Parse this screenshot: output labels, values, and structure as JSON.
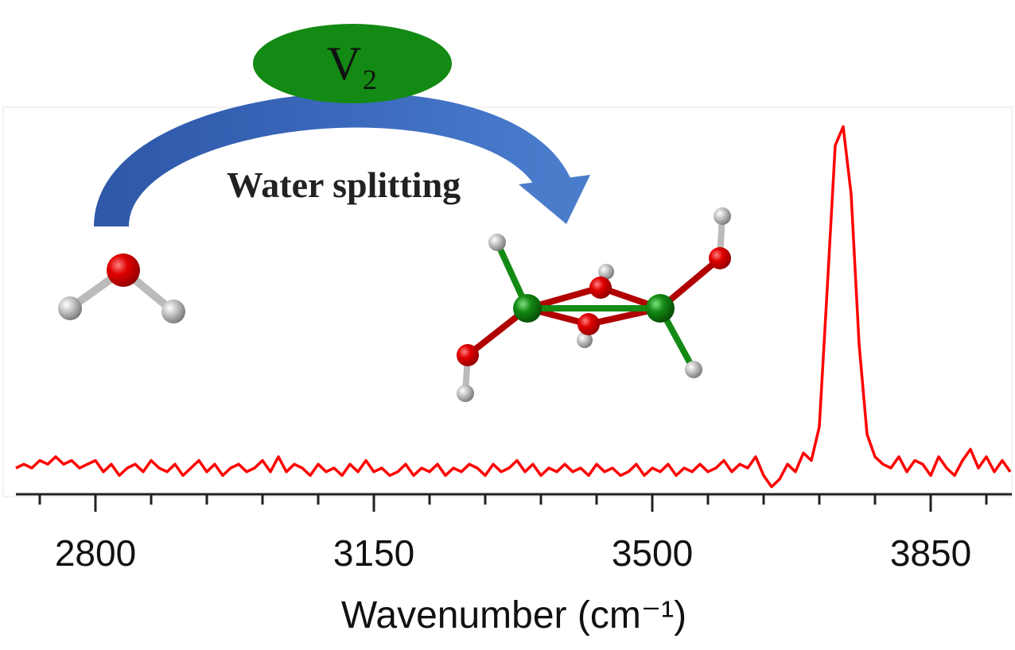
{
  "chart_data": {
    "type": "line",
    "catalyst_label": "V₂",
    "reaction_label": "Water splitting",
    "xlabel": "Wavenumber (cm⁻¹)",
    "color": "#ff0000",
    "xlim": [
      2700,
      3950
    ],
    "xticks": [
      2800,
      3150,
      3500,
      3850
    ],
    "xminorticks": [
      2730,
      2870,
      2940,
      3010,
      3080,
      3220,
      3290,
      3360,
      3430,
      3570,
      3640,
      3710,
      3780,
      3920
    ],
    "ylim": [
      0,
      1
    ],
    "x": [
      2700,
      2710,
      2720,
      2730,
      2740,
      2750,
      2760,
      2770,
      2780,
      2790,
      2800,
      2810,
      2820,
      2830,
      2840,
      2850,
      2860,
      2870,
      2880,
      2890,
      2900,
      2910,
      2920,
      2930,
      2940,
      2950,
      2960,
      2970,
      2980,
      2990,
      3000,
      3010,
      3020,
      3030,
      3040,
      3050,
      3060,
      3070,
      3080,
      3090,
      3100,
      3110,
      3120,
      3130,
      3140,
      3150,
      3160,
      3170,
      3180,
      3190,
      3200,
      3210,
      3220,
      3230,
      3240,
      3250,
      3260,
      3270,
      3280,
      3290,
      3300,
      3310,
      3320,
      3330,
      3340,
      3350,
      3360,
      3370,
      3380,
      3390,
      3400,
      3410,
      3420,
      3430,
      3440,
      3450,
      3460,
      3470,
      3480,
      3490,
      3500,
      3510,
      3520,
      3530,
      3540,
      3550,
      3560,
      3570,
      3580,
      3590,
      3600,
      3610,
      3620,
      3630,
      3640,
      3650,
      3660,
      3670,
      3680,
      3690,
      3700,
      3710,
      3720,
      3730,
      3740,
      3750,
      3760,
      3770,
      3780,
      3790,
      3800,
      3810,
      3820,
      3830,
      3840,
      3850,
      3860,
      3870,
      3880,
      3890,
      3900,
      3910,
      3920,
      3930,
      3940,
      3950
    ],
    "values": [
      0.07,
      0.08,
      0.07,
      0.09,
      0.08,
      0.1,
      0.08,
      0.09,
      0.07,
      0.08,
      0.09,
      0.06,
      0.08,
      0.05,
      0.07,
      0.08,
      0.06,
      0.09,
      0.07,
      0.06,
      0.08,
      0.05,
      0.07,
      0.09,
      0.06,
      0.08,
      0.05,
      0.07,
      0.08,
      0.06,
      0.07,
      0.09,
      0.06,
      0.1,
      0.06,
      0.08,
      0.07,
      0.05,
      0.08,
      0.06,
      0.07,
      0.05,
      0.08,
      0.06,
      0.09,
      0.06,
      0.07,
      0.05,
      0.06,
      0.08,
      0.05,
      0.07,
      0.06,
      0.08,
      0.05,
      0.07,
      0.06,
      0.08,
      0.07,
      0.05,
      0.08,
      0.06,
      0.07,
      0.09,
      0.06,
      0.08,
      0.05,
      0.07,
      0.06,
      0.08,
      0.06,
      0.07,
      0.05,
      0.08,
      0.06,
      0.07,
      0.05,
      0.06,
      0.08,
      0.05,
      0.07,
      0.06,
      0.08,
      0.05,
      0.07,
      0.06,
      0.08,
      0.06,
      0.07,
      0.09,
      0.06,
      0.08,
      0.07,
      0.1,
      0.05,
      0.02,
      0.04,
      0.08,
      0.06,
      0.11,
      0.09,
      0.18,
      0.55,
      0.93,
      0.98,
      0.8,
      0.4,
      0.16,
      0.1,
      0.08,
      0.07,
      0.1,
      0.06,
      0.09,
      0.08,
      0.05,
      0.1,
      0.07,
      0.05,
      0.09,
      0.12,
      0.07,
      0.1,
      0.06,
      0.09,
      0.06
    ]
  }
}
